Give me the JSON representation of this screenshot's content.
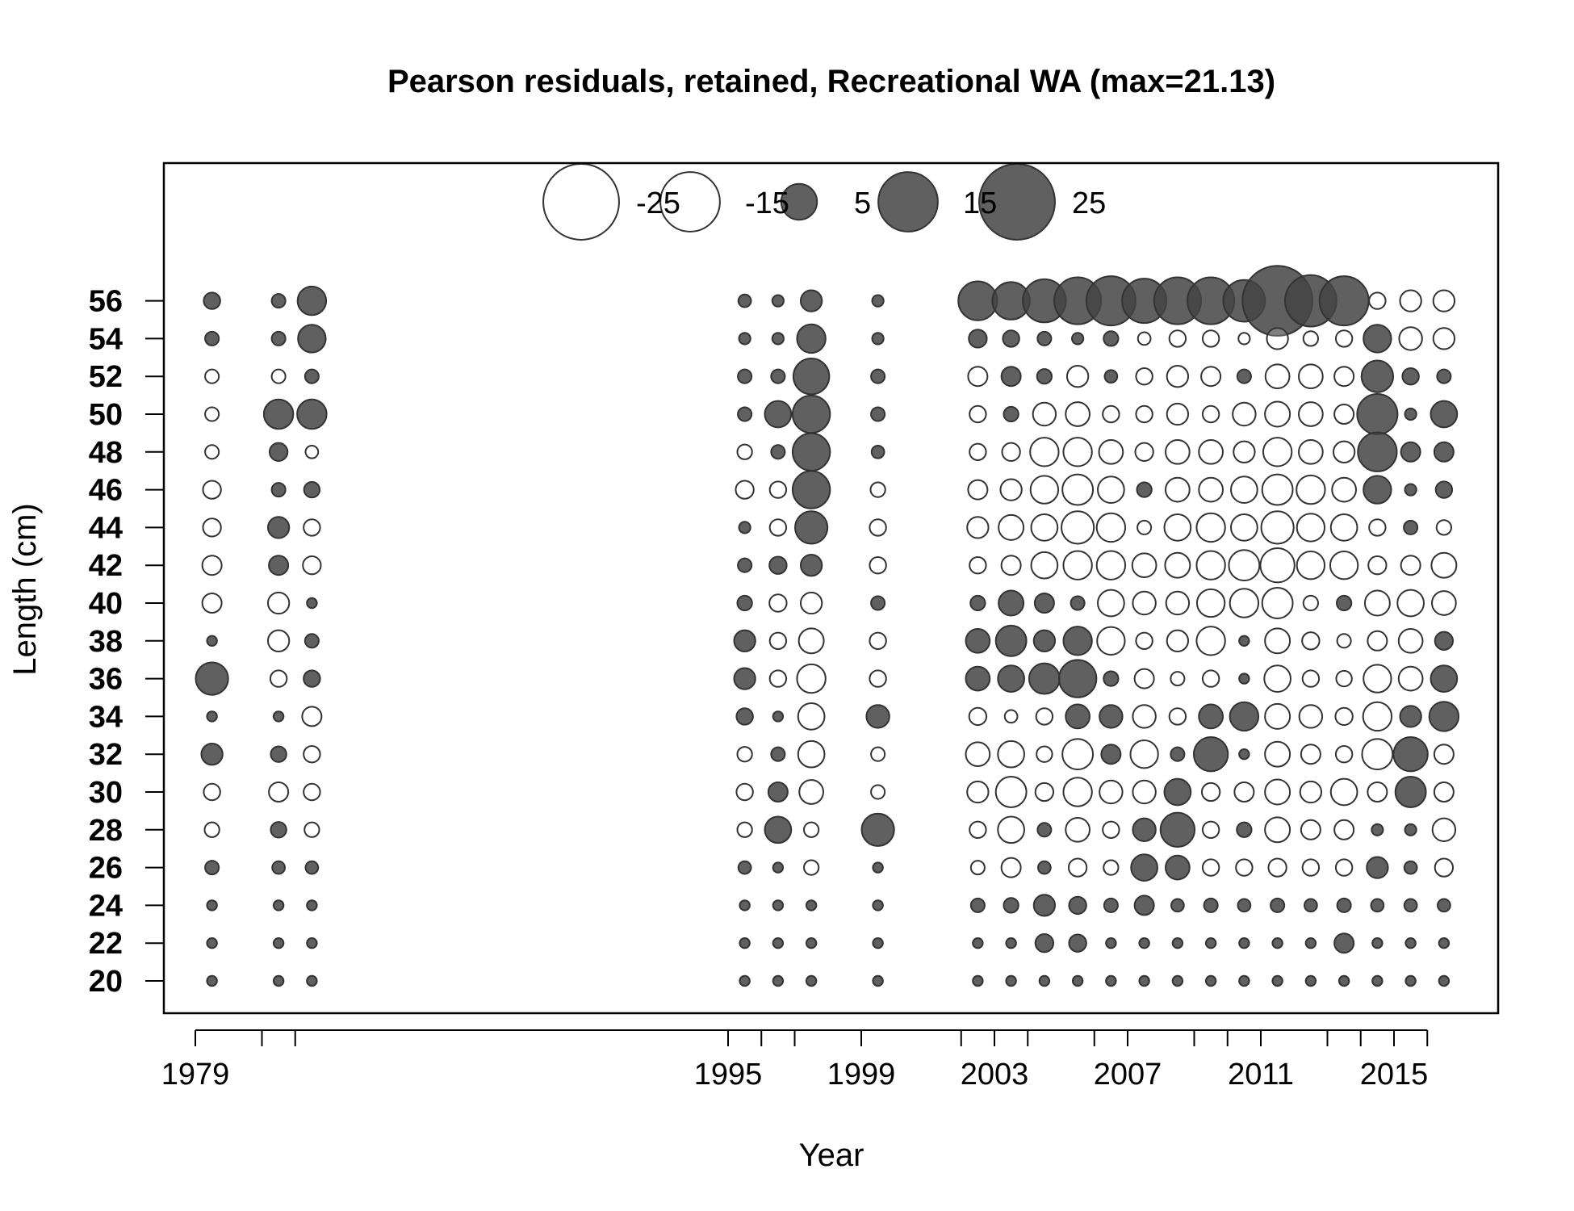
{
  "chart_data": {
    "type": "scatter",
    "subtype": "bubble",
    "title": "Pearson residuals, retained, Recreational WA (max=21.13)",
    "xlabel": "Year",
    "ylabel": "Length (cm)",
    "xlim": [
      1978,
      2018
    ],
    "x_ticks": [
      1979,
      1981,
      1982,
      1995,
      1996,
      1997,
      1999,
      2002,
      2003,
      2004,
      2006,
      2007,
      2009,
      2010,
      2011,
      2013,
      2014,
      2015,
      2016
    ],
    "x_tick_labels": [
      "1979",
      "1995",
      "1999",
      "2003",
      "2007",
      "2011",
      "2015"
    ],
    "y_ticks": [
      20,
      22,
      24,
      26,
      28,
      30,
      32,
      34,
      36,
      38,
      40,
      42,
      44,
      46,
      48,
      50,
      52,
      54,
      56
    ],
    "grid": false,
    "legend": {
      "position": "top",
      "values": [
        -25,
        -15,
        5,
        15,
        25
      ],
      "labels": [
        "-25",
        "-15",
        "5",
        "15",
        "25"
      ]
    },
    "colors": {
      "positive": "#444444",
      "negative_fill": "#ffffff",
      "outline": "#333333"
    },
    "years": [
      1979.5,
      1981.5,
      1982.5,
      1995.5,
      1996.5,
      1997.5,
      1999.5,
      2002.5,
      2003.5,
      2004.5,
      2005.5,
      2006.5,
      2007.5,
      2008.5,
      2009.5,
      2010.5,
      2011.5,
      2012.5,
      2013.5,
      2014.5,
      2015.5,
      2016.5
    ],
    "lengths": [
      56,
      54,
      52,
      50,
      48,
      46,
      44,
      42,
      40,
      38,
      36,
      34,
      32,
      30,
      28,
      26,
      24,
      22,
      20
    ],
    "residuals": [
      [
        0.8,
        0.5,
        3,
        0.4,
        0.3,
        1.5,
        0.3,
        6,
        5.5,
        7.5,
        9,
        10,
        8,
        9,
        9,
        7,
        21.13,
        11,
        10,
        -0.8,
        -1.5,
        -1.5
      ],
      [
        0.5,
        0.5,
        2.8,
        0.3,
        0.3,
        3,
        0.3,
        1,
        0.8,
        0.5,
        0.3,
        0.6,
        -0.4,
        -0.8,
        -0.8,
        -0.3,
        -1.5,
        -0.6,
        -0.8,
        2.8,
        -1.8,
        -1.5
      ],
      [
        -0.5,
        -0.5,
        0.5,
        0.5,
        0.5,
        5,
        0.5,
        -1.2,
        1.2,
        0.6,
        -1.5,
        0.4,
        -0.8,
        -1.5,
        -1.2,
        0.5,
        -2,
        -2,
        -1.2,
        3.8,
        0.8,
        0.5
      ],
      [
        -0.5,
        3.2,
        3.2,
        0.5,
        2.5,
        5.5,
        0.5,
        -0.8,
        0.6,
        -1.8,
        -2,
        -0.8,
        -0.8,
        -1.5,
        -0.8,
        -1.8,
        -2.2,
        -2,
        -1.2,
        6.5,
        0.3,
        2.5
      ],
      [
        -0.5,
        1,
        -0.4,
        -0.6,
        0.5,
        5.5,
        0.4,
        -0.8,
        -1,
        -3,
        -3,
        -2,
        -1,
        -2,
        -2,
        -1.5,
        -3,
        -2,
        -1.5,
        6,
        1.2,
        1.2
      ],
      [
        -1,
        0.5,
        0.7,
        -1,
        -0.8,
        5.5,
        -0.6,
        -1.2,
        -1.5,
        -2.8,
        -3.5,
        -2.5,
        0.6,
        -2,
        -2,
        -2.5,
        -3.5,
        -3,
        -2,
        2.8,
        0.3,
        0.8
      ],
      [
        -1,
        1.5,
        -0.8,
        0.3,
        -0.8,
        4,
        -0.8,
        -1.5,
        -2.2,
        -2.5,
        -4,
        -3,
        -0.5,
        -2.5,
        -3,
        -2.5,
        -4,
        -2.8,
        -2.5,
        -0.8,
        0.5,
        -0.6
      ],
      [
        -1.2,
        1.2,
        -1,
        0.5,
        0.9,
        1.5,
        -0.8,
        -0.8,
        -1.2,
        -2.5,
        -3,
        -3,
        -2,
        -2.2,
        -3,
        -3.5,
        -4.5,
        -2.8,
        -2.8,
        -1,
        -1.2,
        -2.2
      ],
      [
        -1.2,
        -1.5,
        0.2,
        0.6,
        -0.9,
        -1.5,
        0.5,
        0.6,
        2.2,
        1.2,
        0.5,
        -2.5,
        -1.8,
        -1.8,
        -2.8,
        -3,
        -3.5,
        -0.6,
        0.6,
        -2.2,
        -2.5,
        -2
      ],
      [
        0.2,
        -1.5,
        0.5,
        1.5,
        -0.8,
        -2.2,
        -0.8,
        2,
        3.5,
        1.5,
        3,
        -2.8,
        -0.8,
        -1.5,
        -3,
        0.2,
        -2.2,
        -0.9,
        -0.5,
        -1.2,
        -2,
        1
      ],
      [
        4,
        -0.8,
        0.8,
        1.5,
        -0.8,
        -3,
        -0.8,
        2,
        2.5,
        3.5,
        5.5,
        0.6,
        -1.2,
        -0.5,
        -0.8,
        0.2,
        -2.5,
        -0.8,
        -0.7,
        -2.8,
        -2,
        2.5
      ],
      [
        0.2,
        0.2,
        -1.2,
        0.8,
        0.2,
        -2.5,
        1.8,
        -0.9,
        -0.4,
        -0.8,
        2,
        1.8,
        -1.8,
        -0.8,
        2,
        3,
        -2.2,
        -1.8,
        -0.9,
        -3,
        1.5,
        3.2
      ],
      [
        1.5,
        0.7,
        -0.8,
        -0.6,
        0.5,
        -2.5,
        -0.5,
        -2,
        -2.5,
        -0.7,
        -3.5,
        1.2,
        -2.8,
        0.5,
        4.5,
        0.2,
        -2.2,
        -1.2,
        -0.8,
        -3.5,
        4.5,
        -1.2
      ],
      [
        -0.8,
        -1.2,
        -0.8,
        -0.8,
        1.2,
        -2,
        -0.5,
        -1.5,
        -3.5,
        -1,
        -3,
        -1.8,
        -1.8,
        2.5,
        -1,
        -1.2,
        -2.2,
        -1.5,
        -2.5,
        -1.2,
        3.5,
        -1.2
      ],
      [
        -0.6,
        0.7,
        -0.6,
        -0.6,
        2.5,
        -0.6,
        4,
        -0.8,
        -2.5,
        0.5,
        -2,
        -0.8,
        1.8,
        4.5,
        -0.8,
        0.6,
        -2.2,
        -1.2,
        -1.2,
        0.3,
        0.3,
        -1.8
      ],
      [
        0.5,
        0.4,
        0.4,
        0.4,
        0.2,
        -0.6,
        0.2,
        -0.5,
        -1.2,
        0.4,
        -1,
        -0.6,
        2.5,
        2,
        -0.8,
        -0.8,
        -1,
        -0.8,
        -0.8,
        1.5,
        0.4,
        -1
      ],
      [
        0.2,
        0.2,
        0.2,
        0.2,
        0.2,
        0.2,
        0.2,
        0.5,
        0.6,
        1.5,
        0.9,
        0.5,
        1.2,
        0.4,
        0.5,
        0.4,
        0.5,
        0.4,
        0.5,
        0.4,
        0.4,
        0.4
      ],
      [
        0.2,
        0.2,
        0.2,
        0.2,
        0.2,
        0.2,
        0.2,
        0.2,
        0.2,
        1,
        0.9,
        0.2,
        0.2,
        0.2,
        0.2,
        0.2,
        0.2,
        0.2,
        1.2,
        0.2,
        0.2,
        0.2
      ],
      [
        0.2,
        0.2,
        0.2,
        0.2,
        0.2,
        0.2,
        0.2,
        0.2,
        0.2,
        0.2,
        0.2,
        0.2,
        0.2,
        0.2,
        0.2,
        0.2,
        0.2,
        0.2,
        0.2,
        0.2,
        0.2,
        0.2
      ]
    ]
  }
}
